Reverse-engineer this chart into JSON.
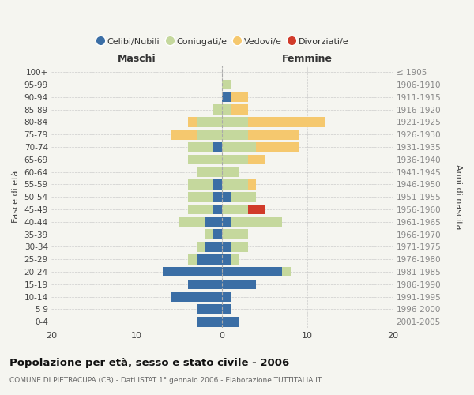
{
  "age_groups": [
    "0-4",
    "5-9",
    "10-14",
    "15-19",
    "20-24",
    "25-29",
    "30-34",
    "35-39",
    "40-44",
    "45-49",
    "50-54",
    "55-59",
    "60-64",
    "65-69",
    "70-74",
    "75-79",
    "80-84",
    "85-89",
    "90-94",
    "95-99",
    "100+"
  ],
  "birth_years": [
    "2001-2005",
    "1996-2000",
    "1991-1995",
    "1986-1990",
    "1981-1985",
    "1976-1980",
    "1971-1975",
    "1966-1970",
    "1961-1965",
    "1956-1960",
    "1951-1955",
    "1946-1950",
    "1941-1945",
    "1936-1940",
    "1931-1935",
    "1926-1930",
    "1921-1925",
    "1916-1920",
    "1911-1915",
    "1906-1910",
    "≤ 1905"
  ],
  "male": {
    "celibi": [
      3,
      3,
      6,
      4,
      7,
      3,
      2,
      1,
      2,
      1,
      1,
      1,
      0,
      0,
      1,
      0,
      0,
      0,
      0,
      0,
      0
    ],
    "coniugati": [
      0,
      0,
      0,
      0,
      0,
      1,
      1,
      1,
      3,
      3,
      3,
      3,
      3,
      4,
      3,
      3,
      3,
      1,
      0,
      0,
      0
    ],
    "vedovi": [
      0,
      0,
      0,
      0,
      0,
      0,
      0,
      0,
      0,
      0,
      0,
      0,
      0,
      0,
      0,
      3,
      1,
      0,
      0,
      0,
      0
    ],
    "divorziati": [
      0,
      0,
      0,
      0,
      0,
      0,
      0,
      0,
      0,
      0,
      0,
      0,
      0,
      0,
      0,
      0,
      0,
      0,
      0,
      0,
      0
    ]
  },
  "female": {
    "nubili": [
      2,
      1,
      1,
      4,
      7,
      1,
      1,
      0,
      1,
      0,
      1,
      0,
      0,
      0,
      0,
      0,
      0,
      0,
      1,
      0,
      0
    ],
    "coniugate": [
      0,
      0,
      0,
      0,
      1,
      1,
      2,
      3,
      6,
      3,
      3,
      3,
      2,
      3,
      4,
      3,
      3,
      1,
      0,
      1,
      0
    ],
    "vedove": [
      0,
      0,
      0,
      0,
      0,
      0,
      0,
      0,
      0,
      0,
      0,
      1,
      0,
      2,
      5,
      6,
      9,
      2,
      2,
      0,
      0
    ],
    "divorziate": [
      0,
      0,
      0,
      0,
      0,
      0,
      0,
      0,
      0,
      2,
      0,
      0,
      0,
      0,
      0,
      0,
      0,
      0,
      0,
      0,
      0
    ]
  },
  "color_celibi": "#3b6ea5",
  "color_coniugati": "#c5d89d",
  "color_vedovi": "#f5c86e",
  "color_divorziati": "#d13b2a",
  "title": "Popolazione per età, sesso e stato civile - 2006",
  "subtitle": "COMUNE DI PIETRACUPA (CB) - Dati ISTAT 1° gennaio 2006 - Elaborazione TUTTITALIA.IT",
  "xlabel_left": "Maschi",
  "xlabel_right": "Femmine",
  "ylabel_left": "Fasce di età",
  "ylabel_right": "Anni di nascita",
  "xlim": 20,
  "background_color": "#f5f5f0",
  "grid_color": "#cccccc"
}
